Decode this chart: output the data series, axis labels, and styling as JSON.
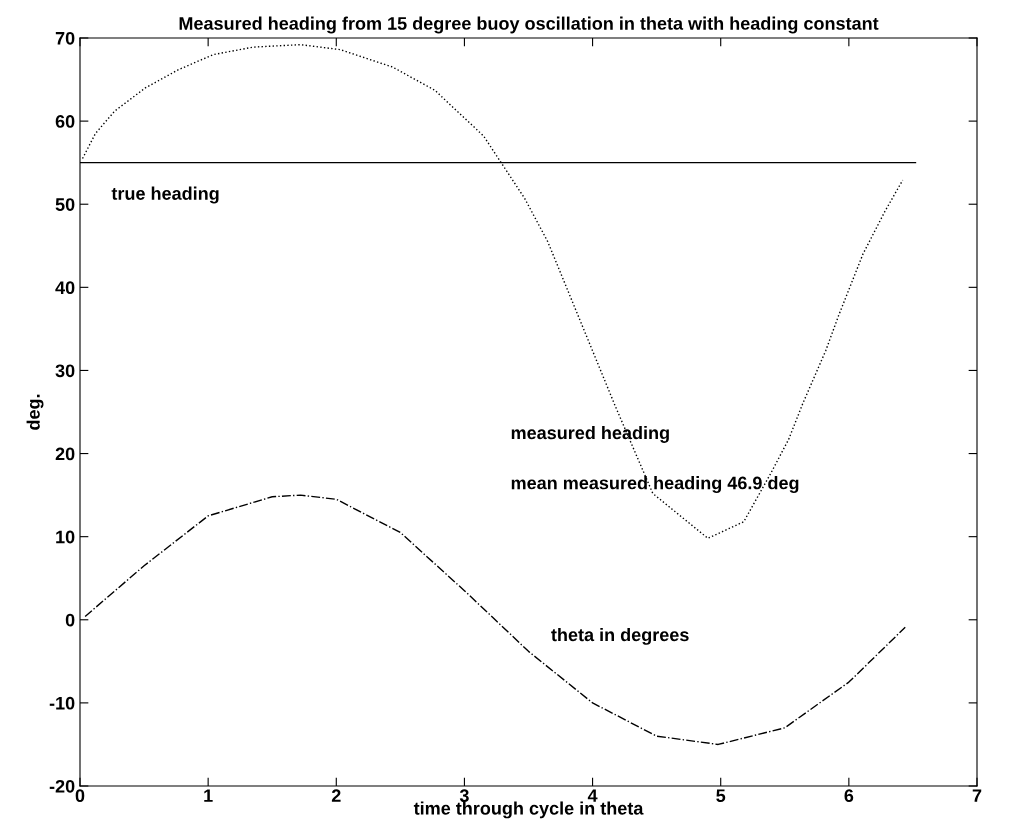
{
  "chart_data": {
    "type": "line",
    "title": "Measured heading from 15 degree buoy oscillation in theta with heading constant",
    "xlabel": "time through cycle in theta",
    "ylabel": "deg.",
    "xlim": [
      0,
      7
    ],
    "xticks": [
      0,
      1,
      2,
      3,
      4,
      5,
      6,
      7
    ],
    "ylim": [
      -20,
      70
    ],
    "yticks": [
      -20,
      -10,
      0,
      10,
      20,
      30,
      40,
      50,
      60,
      70
    ],
    "grid": false,
    "legend": false,
    "series": [
      {
        "color": "#000000",
        "line_style": "solid",
        "x": [
          0,
          6.52
        ],
        "values": [
          55,
          55
        ]
      },
      {
        "color": "#000000",
        "line_style": "dotted",
        "x": [
          0.02,
          0.12,
          0.27,
          0.51,
          0.77,
          1.04,
          1.35,
          1.72,
          2.03,
          2.44,
          2.77,
          3.15,
          3.47,
          3.65,
          4.18,
          4.47,
          4.9,
          5.18,
          5.39,
          5.53,
          5.64,
          5.73,
          5.82,
          5.92,
          6.11,
          6.28,
          6.42
        ],
        "values": [
          55.5,
          58.5,
          61.2,
          64.0,
          66.2,
          68.0,
          68.9,
          69.2,
          68.6,
          66.5,
          63.7,
          58.2,
          50.7,
          45.5,
          25.6,
          15.2,
          9.8,
          11.8,
          17.6,
          21.7,
          26.0,
          29.2,
          32.4,
          36.6,
          44.0,
          49.1,
          52.9
        ]
      },
      {
        "color": "#000000",
        "line_style": "dashdot",
        "x": [
          0.04,
          0.5,
          1.0,
          1.5,
          1.72,
          2.0,
          2.5,
          3.0,
          3.24,
          3.5,
          4.0,
          4.5,
          4.98,
          5.5,
          6.0,
          6.44
        ],
        "values": [
          0.4,
          6.5,
          12.5,
          14.8,
          15,
          14.5,
          10.5,
          3.5,
          0,
          -3.8,
          -10,
          -14,
          -15,
          -13,
          -7.5,
          -0.9
        ]
      }
    ],
    "annotations": [
      "true heading",
      "measured heading",
      "mean measured heading 46.9 deg",
      "theta in degrees"
    ]
  }
}
